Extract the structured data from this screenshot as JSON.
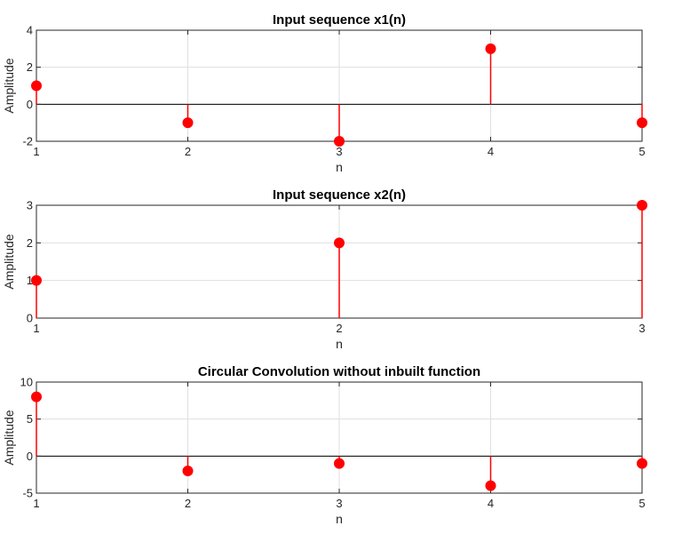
{
  "chart_data": [
    {
      "type": "stem",
      "title": "Input sequence x1(n)",
      "xlabel": "n",
      "ylabel": "Amplitude",
      "x": [
        1,
        2,
        3,
        4,
        5
      ],
      "y": [
        1,
        -1,
        -2,
        3,
        -1
      ],
      "xlim": [
        1,
        5
      ],
      "ylim": [
        -2,
        4
      ],
      "xticks": [
        1,
        2,
        3,
        4,
        5
      ],
      "yticks": [
        -2,
        0,
        2,
        4
      ],
      "grid": true,
      "color": "#ff0000"
    },
    {
      "type": "stem",
      "title": "Input sequence x2(n)",
      "xlabel": "n",
      "ylabel": "Amplitude",
      "x": [
        1,
        2,
        3
      ],
      "y": [
        1,
        2,
        3
      ],
      "xlim": [
        1,
        3
      ],
      "ylim": [
        0,
        3
      ],
      "xticks": [
        1,
        2,
        3
      ],
      "yticks": [
        0,
        1,
        2,
        3
      ],
      "grid": true,
      "color": "#ff0000"
    },
    {
      "type": "stem",
      "title": "Circular Convolution without inbuilt function",
      "xlabel": "n",
      "ylabel": "Amplitude",
      "x": [
        1,
        2,
        3,
        4,
        5
      ],
      "y": [
        8,
        -2,
        -1,
        -4,
        -1
      ],
      "xlim": [
        1,
        5
      ],
      "ylim": [
        -5,
        10
      ],
      "xticks": [
        1,
        2,
        3,
        4,
        5
      ],
      "yticks": [
        -5,
        0,
        5,
        10
      ],
      "grid": true,
      "color": "#ff0000"
    }
  ]
}
